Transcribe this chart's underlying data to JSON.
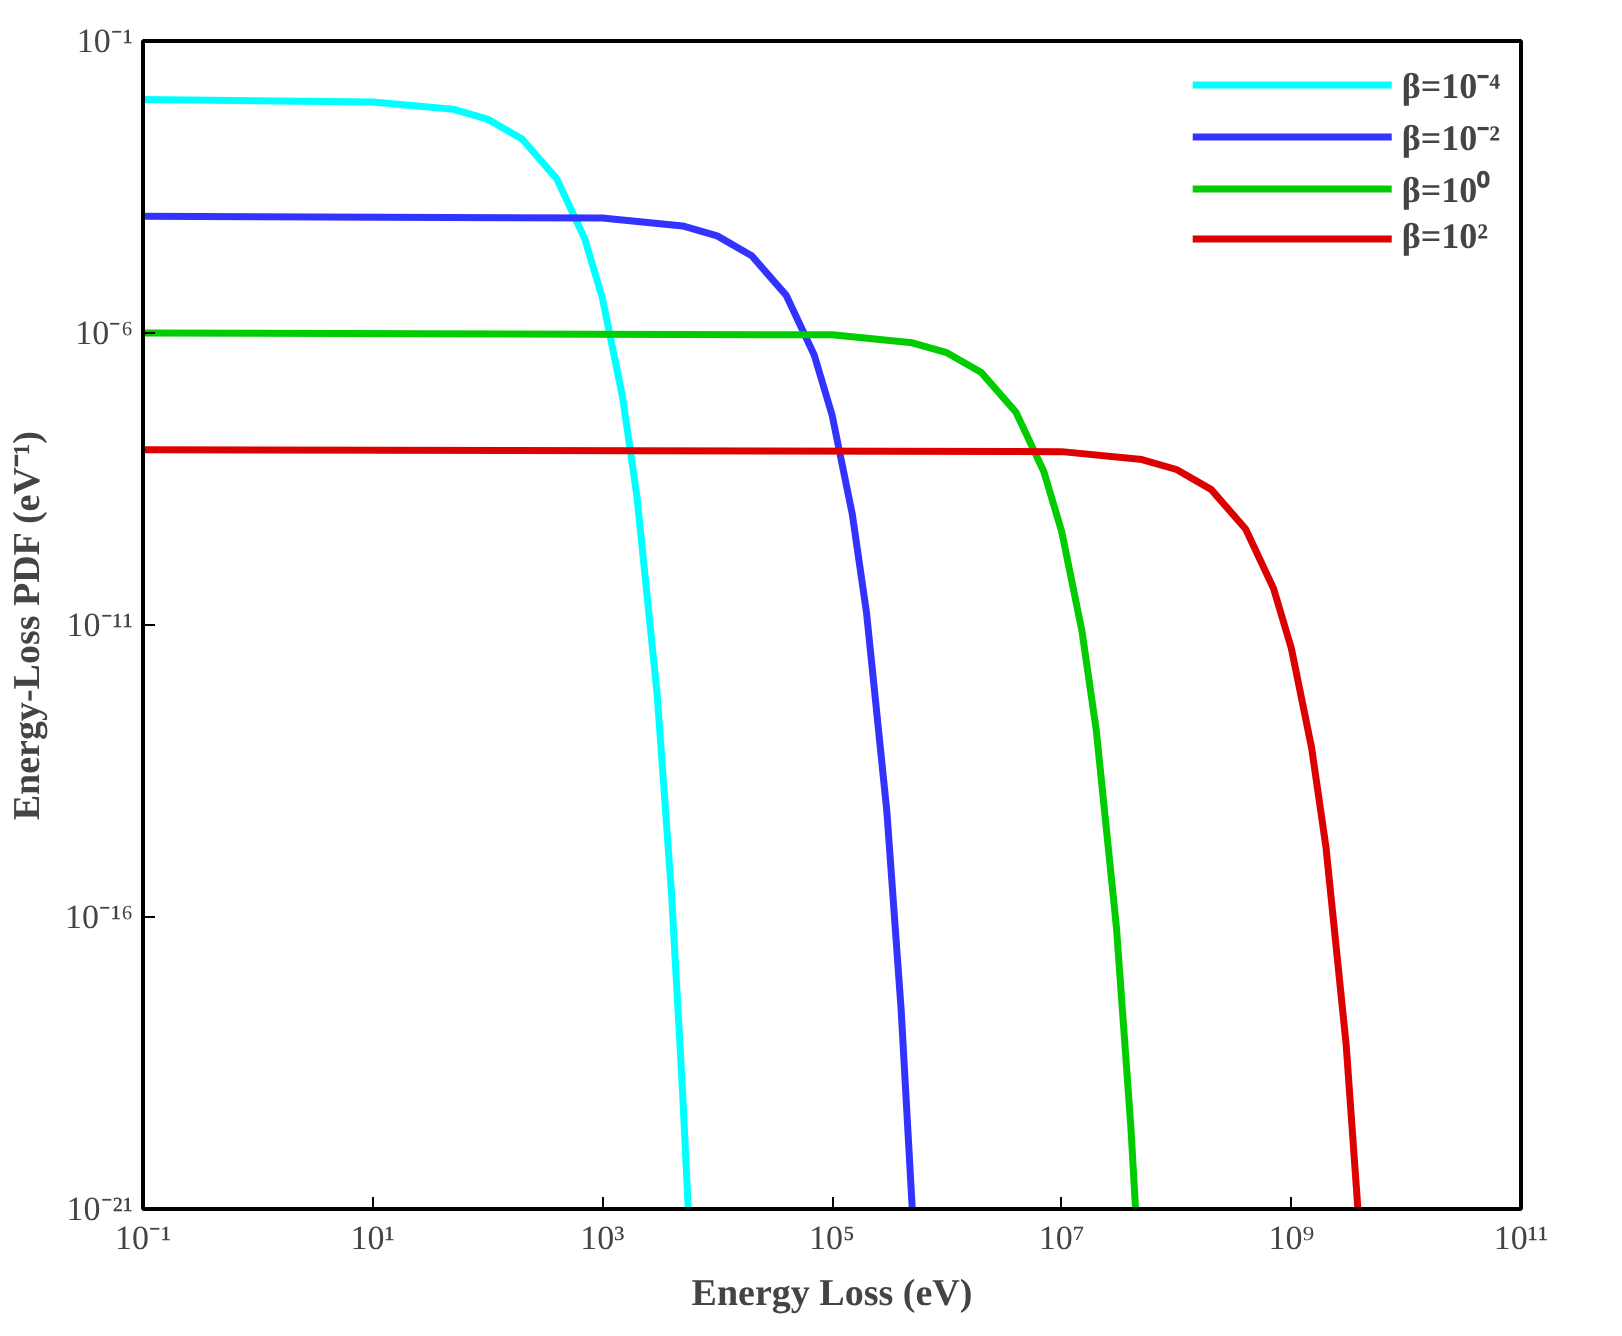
{
  "chart_data": {
    "type": "line",
    "xlabel": "Energy Loss (eV)",
    "ylabel": "Energy-Loss PDF (eV⁻¹)",
    "log": "xy",
    "grid": false,
    "legend": "top right",
    "marker": "none",
    "line_style": "solid",
    "xlim": [
      0.1,
      100000000000.0
    ],
    "ylim": [
      1e-21,
      0.1
    ],
    "xticks": [
      {
        "value": 0.1,
        "label": "10⁻¹"
      },
      {
        "value": 10,
        "label": "10¹"
      },
      {
        "value": 1000,
        "label": "10³"
      },
      {
        "value": 100000,
        "label": "10⁵"
      },
      {
        "value": 10000000.0,
        "label": "10⁷"
      },
      {
        "value": 1000000000.0,
        "label": "10⁹"
      },
      {
        "value": 100000000000.0,
        "label": "10¹¹"
      }
    ],
    "yticks": [
      {
        "value": 1e-21,
        "label": "10⁻²¹"
      },
      {
        "value": 1e-16,
        "label": "10⁻¹⁶"
      },
      {
        "value": 1e-11,
        "label": "10⁻¹¹"
      },
      {
        "value": 1e-06,
        "label": "10⁻⁶"
      },
      {
        "value": 0.1,
        "label": "10⁻¹"
      }
    ],
    "series": [
      {
        "name": "β=10⁻⁴",
        "color": "#00ffff",
        "x": [
          0.1,
          10,
          50,
          100,
          200,
          400,
          700,
          1000,
          1500,
          2000,
          3000,
          4000,
          5000,
          5600
        ],
        "values": [
          0.01,
          0.009,
          0.0068,
          0.0046,
          0.0021,
          0.00044,
          4.2e-05,
          4e-06,
          8e-08,
          1.6e-09,
          6.6e-13,
          2.6e-16,
          1e-19,
          1e-21
        ]
      },
      {
        "name": "β=10⁻²",
        "color": "#3333ff",
        "x": [
          0.1,
          1000,
          5000,
          10000,
          20000,
          40000,
          70000,
          100000,
          150000,
          200000,
          300000,
          400000,
          500000
        ],
        "values": [
          0.0001,
          9.3e-05,
          6.8e-05,
          4.6e-05,
          2.1e-05,
          4.4e-06,
          4.2e-07,
          4e-08,
          8e-10,
          1.6e-11,
          6.6e-15,
          2.6e-18,
          1e-21
        ]
      },
      {
        "name": "β=10⁰",
        "color": "#00cc00",
        "x": [
          0.1,
          100000,
          500000,
          1000000,
          2000000,
          4000000,
          7000000,
          10000000.0,
          15000000.0,
          20000000.0,
          30000000.0,
          40000000.0,
          44000000.0
        ],
        "values": [
          1e-06,
          9.3e-07,
          6.8e-07,
          4.6e-07,
          2.1e-07,
          4.4e-08,
          4.2e-09,
          4e-10,
          8e-12,
          1.6e-13,
          6.6e-17,
          2.6e-20,
          1e-21
        ]
      },
      {
        "name": "β=10²",
        "color": "#dd0000",
        "x": [
          0.1,
          10000000.0,
          50000000.0,
          100000000.0,
          200000000.0,
          400000000.0,
          700000000.0,
          1000000000.0,
          1500000000.0,
          2000000000.0,
          3000000000.0,
          3800000000.0
        ],
        "values": [
          1e-08,
          9.3e-09,
          6.8e-09,
          4.6e-09,
          2.1e-09,
          4.4e-10,
          4.2e-11,
          4e-12,
          8e-14,
          1.6e-15,
          6.6e-19,
          1e-21
        ]
      }
    ]
  }
}
